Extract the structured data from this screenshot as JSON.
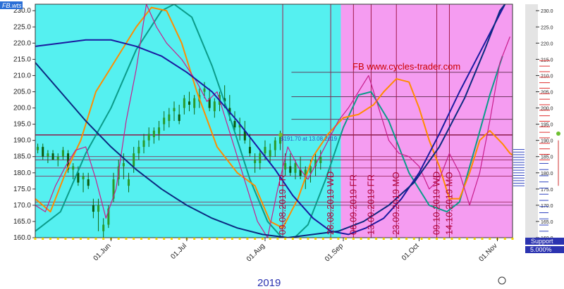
{
  "file_tag": "FB.wts",
  "chart_data": {
    "type": "line",
    "title": "FB www.cycles-trader.com",
    "annotation": "$191.70 at 13.08.2019",
    "year_label": "2019",
    "support_label": "Support",
    "support_percent": "5.000%",
    "ylim": [
      160,
      232
    ],
    "y_ticks": [
      "160.0",
      "165.0",
      "170.0",
      "175.0",
      "180.0",
      "185.0",
      "190.0",
      "195.0",
      "200.0",
      "205.0",
      "210.0",
      "215.0",
      "220.0",
      "225.0",
      "230.0"
    ],
    "right_ticks": [
      "160.0",
      "165.0",
      "170.0",
      "175.0",
      "180.0",
      "185.0",
      "190.0",
      "195.0",
      "200.0",
      "205.0",
      "210.0",
      "215.0",
      "220.0",
      "225.0",
      "230.0"
    ],
    "x_day_range": [
      0,
      180
    ],
    "x_ticks": [
      {
        "day": 30,
        "label": "01.Jun"
      },
      {
        "day": 60,
        "label": "01.Jul"
      },
      {
        "day": 91,
        "label": "01.Aug"
      },
      {
        "day": 122,
        "label": "01.Sep"
      },
      {
        "day": 152,
        "label": "01.Oct"
      },
      {
        "day": 183,
        "label": "01.Nov"
      }
    ],
    "forecast_start_day": 121,
    "cycle_dates": [
      {
        "day": 98,
        "label": "09.08.2019 FR"
      },
      {
        "day": 117,
        "label": "28.08.2019 WD"
      },
      {
        "day": 126,
        "label": "06.09.2019 FR"
      },
      {
        "day": 133,
        "label": "13.09.2019 FR"
      },
      {
        "day": 143,
        "label": "23.09.2019 MO"
      },
      {
        "day": 159,
        "label": "09.10.2019 WD"
      },
      {
        "day": 164,
        "label": "14.10.2019 MO"
      }
    ],
    "h_levels": [
      191.7,
      185.0,
      184.0,
      181.5,
      179.0,
      171.0,
      170.0,
      196.5,
      203.5,
      211.0
    ],
    "series": [
      {
        "name": "",
        "color": "#0b9b8a",
        "width": 2,
        "values": [
          [
            0,
            162
          ],
          [
            10,
            168
          ],
          [
            20,
            186
          ],
          [
            30,
            200
          ],
          [
            40,
            218
          ],
          [
            50,
            230
          ],
          [
            55,
            232
          ],
          [
            62,
            228
          ],
          [
            70,
            213
          ],
          [
            78,
            195
          ],
          [
            85,
            178
          ],
          [
            92,
            165
          ],
          [
            100,
            158
          ],
          [
            108,
            164
          ],
          [
            115,
            178
          ],
          [
            122,
            194
          ],
          [
            128,
            204
          ],
          [
            133,
            205
          ],
          [
            140,
            196
          ],
          [
            148,
            180
          ],
          [
            156,
            170
          ],
          [
            163,
            168
          ],
          [
            168,
            171
          ],
          [
            175,
            190
          ],
          [
            180,
            204
          ],
          [
            185,
            216
          ]
        ]
      },
      {
        "name": "",
        "color": "#ff8c00",
        "width": 2,
        "values": [
          [
            0,
            172
          ],
          [
            6,
            168
          ],
          [
            12,
            180
          ],
          [
            18,
            190
          ],
          [
            24,
            205
          ],
          [
            32,
            215
          ],
          [
            40,
            225
          ],
          [
            46,
            231
          ],
          [
            52,
            230
          ],
          [
            58,
            220
          ],
          [
            64,
            205
          ],
          [
            72,
            188
          ],
          [
            80,
            180
          ],
          [
            87,
            176
          ],
          [
            93,
            165
          ],
          [
            98,
            163
          ],
          [
            104,
            172
          ],
          [
            110,
            185
          ],
          [
            116,
            192
          ],
          [
            122,
            197
          ],
          [
            128,
            198
          ],
          [
            134,
            201
          ],
          [
            138,
            205
          ],
          [
            143,
            209
          ],
          [
            148,
            208
          ],
          [
            152,
            200
          ],
          [
            156,
            190
          ],
          [
            160,
            182
          ],
          [
            164,
            172
          ],
          [
            168,
            172
          ],
          [
            172,
            180
          ],
          [
            176,
            190
          ],
          [
            180,
            193
          ],
          [
            185,
            189
          ],
          [
            188,
            186
          ],
          [
            190,
            185
          ]
        ]
      },
      {
        "name": "",
        "color": "#c81e8c",
        "width": 1.2,
        "values": [
          [
            0,
            170
          ],
          [
            4,
            168
          ],
          [
            8,
            176
          ],
          [
            12,
            182
          ],
          [
            16,
            187
          ],
          [
            20,
            188
          ],
          [
            24,
            178
          ],
          [
            28,
            166
          ],
          [
            32,
            175
          ],
          [
            36,
            196
          ],
          [
            40,
            212
          ],
          [
            44,
            232
          ],
          [
            48,
            225
          ],
          [
            52,
            220
          ],
          [
            58,
            215
          ],
          [
            64,
            208
          ],
          [
            68,
            202
          ],
          [
            72,
            205
          ],
          [
            76,
            195
          ],
          [
            80,
            185
          ],
          [
            84,
            175
          ],
          [
            88,
            165
          ],
          [
            92,
            160
          ],
          [
            96,
            175
          ],
          [
            100,
            188
          ],
          [
            104,
            182
          ],
          [
            108,
            178
          ],
          [
            112,
            184
          ],
          [
            116,
            190
          ],
          [
            120,
            196
          ],
          [
            124,
            200
          ],
          [
            128,
            205
          ],
          [
            132,
            210
          ],
          [
            136,
            200
          ],
          [
            140,
            190
          ],
          [
            144,
            186
          ],
          [
            148,
            185
          ],
          [
            152,
            182
          ],
          [
            156,
            175
          ],
          [
            160,
            178
          ],
          [
            164,
            186
          ],
          [
            168,
            180
          ],
          [
            172,
            170
          ],
          [
            176,
            180
          ],
          [
            180,
            196
          ],
          [
            184,
            214
          ],
          [
            188,
            222
          ]
        ]
      },
      {
        "name": "",
        "color": "#1a1aa0",
        "width": 2,
        "values": [
          [
            0,
            219
          ],
          [
            10,
            220
          ],
          [
            20,
            221
          ],
          [
            30,
            221
          ],
          [
            40,
            219
          ],
          [
            50,
            216
          ],
          [
            60,
            211
          ],
          [
            70,
            205
          ],
          [
            80,
            196
          ],
          [
            88,
            188
          ],
          [
            95,
            181
          ],
          [
            102,
            173
          ],
          [
            110,
            166
          ],
          [
            117,
            162
          ],
          [
            124,
            161
          ],
          [
            131,
            163
          ],
          [
            138,
            166
          ],
          [
            145,
            172
          ],
          [
            152,
            180
          ],
          [
            160,
            192
          ],
          [
            168,
            205
          ],
          [
            176,
            217
          ],
          [
            182,
            226
          ],
          [
            186,
            232
          ]
        ]
      },
      {
        "name": "",
        "color": "#0b2a80",
        "width": 2,
        "values": [
          [
            0,
            214
          ],
          [
            10,
            205
          ],
          [
            20,
            196
          ],
          [
            30,
            188
          ],
          [
            40,
            181
          ],
          [
            50,
            175
          ],
          [
            60,
            170
          ],
          [
            70,
            166
          ],
          [
            80,
            163
          ],
          [
            90,
            161
          ],
          [
            100,
            160
          ],
          [
            110,
            161
          ],
          [
            120,
            162
          ],
          [
            130,
            165
          ],
          [
            140,
            170
          ],
          [
            150,
            177
          ],
          [
            160,
            188
          ],
          [
            170,
            203
          ],
          [
            178,
            218
          ],
          [
            184,
            230
          ],
          [
            186,
            232
          ]
        ]
      }
    ],
    "candles": [
      [
        1,
        187,
        189,
        186,
        188
      ],
      [
        3,
        188,
        189,
        184,
        185
      ],
      [
        5,
        185,
        187,
        183,
        186
      ],
      [
        7,
        186,
        187,
        184,
        184
      ],
      [
        9,
        184,
        186,
        182,
        185
      ],
      [
        11,
        185,
        188,
        184,
        187
      ],
      [
        13,
        186,
        187,
        180,
        181
      ],
      [
        15,
        181,
        183,
        178,
        182
      ],
      [
        17,
        180,
        182,
        176,
        177
      ],
      [
        19,
        178,
        180,
        174,
        179
      ],
      [
        21,
        178,
        180,
        175,
        176
      ],
      [
        23,
        170,
        172,
        166,
        168
      ],
      [
        25,
        168,
        172,
        162,
        170
      ],
      [
        27,
        162,
        166,
        160,
        164
      ],
      [
        29,
        164,
        170,
        163,
        169
      ],
      [
        31,
        172,
        180,
        171,
        178
      ],
      [
        33,
        178,
        184,
        176,
        182
      ],
      [
        35,
        182,
        186,
        178,
        183
      ],
      [
        37,
        176,
        180,
        174,
        178
      ],
      [
        39,
        182,
        188,
        180,
        186
      ],
      [
        41,
        186,
        190,
        184,
        188
      ],
      [
        43,
        188,
        192,
        186,
        190
      ],
      [
        45,
        190,
        194,
        188,
        192
      ],
      [
        47,
        191,
        194,
        189,
        193
      ],
      [
        49,
        192,
        196,
        190,
        194
      ],
      [
        51,
        195,
        199,
        193,
        197
      ],
      [
        53,
        196,
        200,
        194,
        198
      ],
      [
        55,
        199,
        202,
        196,
        200
      ],
      [
        57,
        198,
        201,
        195,
        196
      ],
      [
        59,
        200,
        204,
        198,
        203
      ],
      [
        61,
        202,
        205,
        199,
        201
      ],
      [
        63,
        200,
        204,
        198,
        203
      ],
      [
        65,
        202,
        206,
        200,
        204
      ],
      [
        67,
        205,
        208,
        203,
        206
      ],
      [
        69,
        203,
        206,
        199,
        200
      ],
      [
        71,
        199,
        203,
        197,
        202
      ],
      [
        73,
        201,
        205,
        199,
        204
      ],
      [
        75,
        203,
        207,
        200,
        202
      ],
      [
        77,
        200,
        204,
        196,
        198
      ],
      [
        79,
        196,
        199,
        193,
        194
      ],
      [
        81,
        194,
        197,
        190,
        195
      ],
      [
        83,
        193,
        196,
        189,
        190
      ],
      [
        85,
        188,
        192,
        185,
        186
      ],
      [
        87,
        183,
        186,
        180,
        184
      ],
      [
        89,
        183,
        187,
        181,
        186
      ],
      [
        91,
        186,
        190,
        184,
        188
      ],
      [
        93,
        185,
        189,
        183,
        187
      ],
      [
        95,
        187,
        191,
        185,
        190
      ],
      [
        97,
        189,
        193,
        187,
        191
      ],
      [
        99,
        181,
        186,
        179,
        183
      ],
      [
        101,
        182,
        186,
        179,
        180
      ],
      [
        103,
        180,
        184,
        178,
        183
      ],
      [
        105,
        181,
        185,
        178,
        179
      ],
      [
        107,
        178,
        182,
        175,
        181
      ],
      [
        109,
        180,
        184,
        177,
        182
      ],
      [
        111,
        182,
        186,
        179,
        184
      ],
      [
        113,
        183,
        187,
        181,
        185
      ]
    ]
  }
}
